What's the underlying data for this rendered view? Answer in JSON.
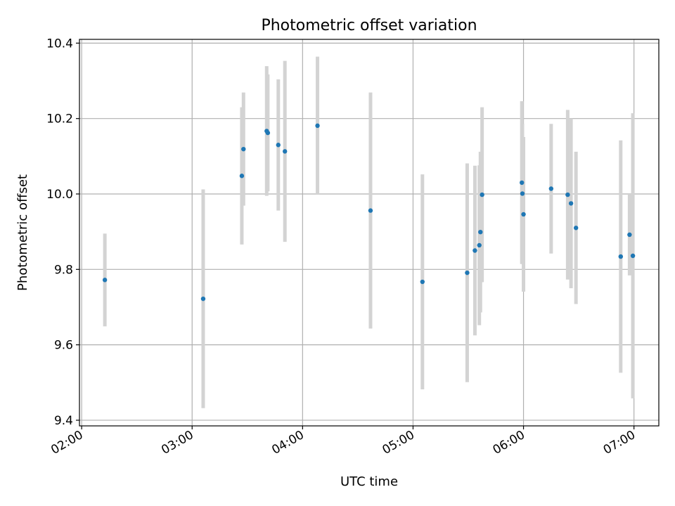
{
  "chart_data": {
    "type": "scatter",
    "title": "Photometric offset variation",
    "xlabel": "UTC time",
    "ylabel": "Photometric offset",
    "x_unit": "UTC time of day (hours, decimal)",
    "xlim": [
      1.98,
      7.225
    ],
    "ylim": [
      9.385,
      10.41
    ],
    "x_ticks": [
      {
        "value": 2,
        "label": "02:00"
      },
      {
        "value": 3,
        "label": "03:00"
      },
      {
        "value": 4,
        "label": "04:00"
      },
      {
        "value": 5,
        "label": "05:00"
      },
      {
        "value": 6,
        "label": "06:00"
      },
      {
        "value": 7,
        "label": "07:00"
      }
    ],
    "y_ticks": [
      {
        "value": 9.4,
        "label": "9.4"
      },
      {
        "value": 9.6,
        "label": "9.6"
      },
      {
        "value": 9.8,
        "label": "9.8"
      },
      {
        "value": 10.0,
        "label": "10.0"
      },
      {
        "value": 10.2,
        "label": "10.2"
      },
      {
        "value": 10.4,
        "label": "10.4"
      }
    ],
    "grid": true,
    "colors": {
      "points": "#1f77b4",
      "error_bars": "#d3d3d3",
      "grid": "#b0b0b0"
    },
    "points": [
      {
        "x": 2.21,
        "y": 9.772,
        "err": 0.123
      },
      {
        "x": 3.1,
        "y": 9.722,
        "err": 0.29
      },
      {
        "x": 3.45,
        "y": 10.048,
        "err": 0.182
      },
      {
        "x": 3.465,
        "y": 10.119,
        "err": 0.15
      },
      {
        "x": 3.675,
        "y": 10.167,
        "err": 0.172
      },
      {
        "x": 3.685,
        "y": 10.162,
        "err": 0.155
      },
      {
        "x": 3.78,
        "y": 10.13,
        "err": 0.174
      },
      {
        "x": 3.84,
        "y": 10.113,
        "err": 0.24
      },
      {
        "x": 4.135,
        "y": 10.181,
        "err": 0.183
      },
      {
        "x": 4.615,
        "y": 9.956,
        "err": 0.313
      },
      {
        "x": 5.085,
        "y": 9.767,
        "err": 0.285
      },
      {
        "x": 5.49,
        "y": 9.791,
        "err": 0.29
      },
      {
        "x": 5.56,
        "y": 9.85,
        "err": 0.225
      },
      {
        "x": 5.6,
        "y": 9.864,
        "err": 0.212
      },
      {
        "x": 5.61,
        "y": 9.899,
        "err": 0.213
      },
      {
        "x": 5.625,
        "y": 9.998,
        "err": 0.232
      },
      {
        "x": 5.985,
        "y": 10.03,
        "err": 0.216
      },
      {
        "x": 5.99,
        "y": 10.001,
        "err": 0.185
      },
      {
        "x": 6.0,
        "y": 9.946,
        "err": 0.205
      },
      {
        "x": 6.25,
        "y": 10.014,
        "err": 0.172
      },
      {
        "x": 6.4,
        "y": 9.998,
        "err": 0.225
      },
      {
        "x": 6.43,
        "y": 9.975,
        "err": 0.225
      },
      {
        "x": 6.475,
        "y": 9.91,
        "err": 0.202
      },
      {
        "x": 6.88,
        "y": 9.834,
        "err": 0.308
      },
      {
        "x": 6.96,
        "y": 9.892,
        "err": 0.108
      },
      {
        "x": 6.99,
        "y": 9.836,
        "err": 0.378
      }
    ]
  }
}
